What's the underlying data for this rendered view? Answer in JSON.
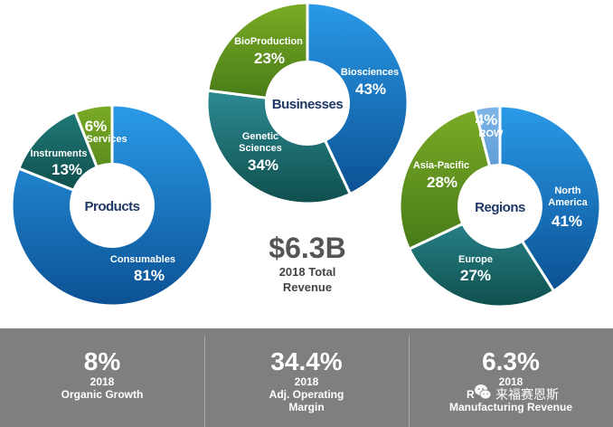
{
  "chart_data": [
    {
      "type": "pie",
      "title": "Products",
      "categories": [
        "Consumables",
        "Instruments",
        "Services"
      ],
      "values": [
        81,
        13,
        6
      ],
      "labels": [
        "81%",
        "13%",
        "6%"
      ],
      "colors": [
        "#1a78c2",
        "#15615f",
        "#5c8f1c"
      ],
      "start": "12 o'clock, clockwise",
      "hole": true
    },
    {
      "type": "pie",
      "title": "Businesses",
      "categories": [
        "Biosciences",
        "Genetic Sciences",
        "BioProduction"
      ],
      "values": [
        43,
        34,
        23
      ],
      "labels": [
        "43%",
        "34%",
        "23%"
      ],
      "colors": [
        "#1a78c2",
        "#1e6f73",
        "#5c8f1c"
      ],
      "start": "12 o'clock, clockwise",
      "hole": true
    },
    {
      "type": "pie",
      "title": "Regions",
      "categories": [
        "North America",
        "Europe",
        "Asia-Pacific",
        "ROW"
      ],
      "values": [
        41,
        27,
        28,
        4
      ],
      "labels": [
        "41%",
        "27%",
        "28%",
        "4%"
      ],
      "colors": [
        "#1a78c2",
        "#1e6f73",
        "#5c8f1c",
        "#5b9bd5"
      ],
      "start": "12 o'clock, clockwise",
      "hole": true
    }
  ],
  "total": {
    "value": "$6.3B",
    "line1": "2018 Total",
    "line2": "Revenue"
  },
  "kpis": [
    {
      "value": "8%",
      "line1": "2018",
      "line2": "Organic Growth",
      "line3": ""
    },
    {
      "value": "34.4%",
      "line1": "2018",
      "line2": "Adj. Operating",
      "line3": "Margin"
    },
    {
      "value": "6.3%",
      "line1": "2018",
      "line2": "R",
      "line3": "Manufacturing Revenue"
    }
  ],
  "watermark": {
    "text": "来福赛恩斯",
    "icon": "wechat-icon"
  },
  "colors": {
    "band": "#7f7f7f",
    "title": "#1f3864",
    "total": "#555555"
  }
}
